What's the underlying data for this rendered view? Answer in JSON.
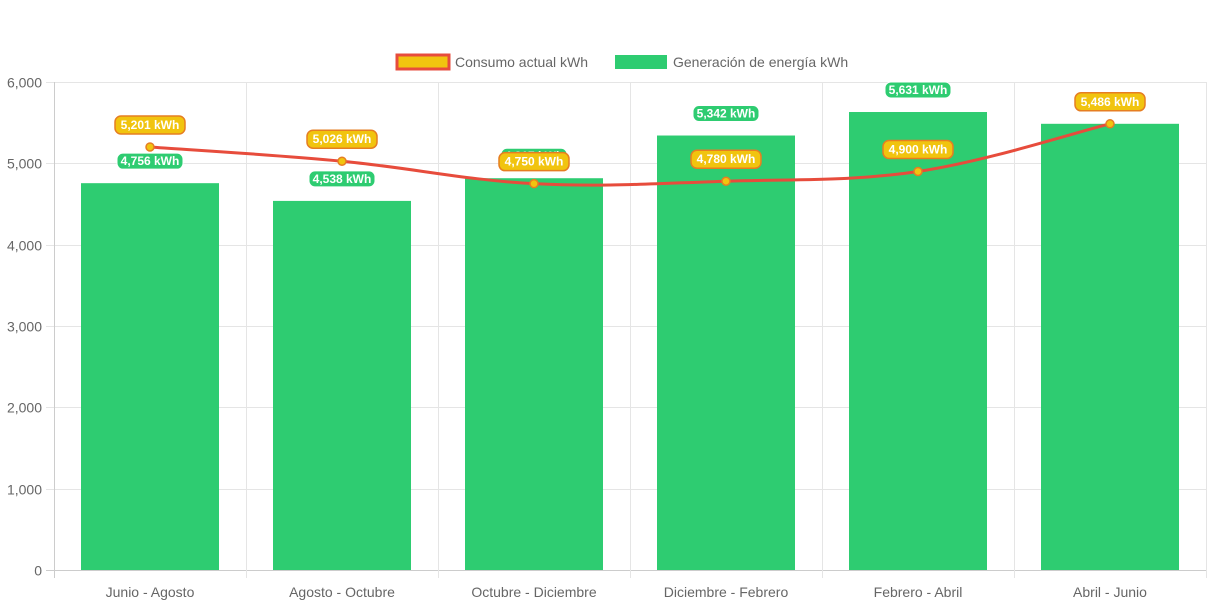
{
  "chart_data": {
    "type": "bar",
    "categories": [
      "Junio - Agosto",
      "Agosto - Octubre",
      "Octubre - Diciembre",
      "Diciembre - Febrero",
      "Febrero - Abril",
      "Abril - Junio"
    ],
    "series": [
      {
        "name": "Consumo actual kWh",
        "type": "line",
        "values": [
          5201,
          5026,
          4750,
          4780,
          4900,
          5486
        ],
        "labels": [
          "5,201 kWh",
          "5,026 kWh",
          "4,750 kWh",
          "4,780 kWh",
          "4,900 kWh",
          "5,486 kWh"
        ],
        "color": "#e74c3c",
        "label_bg": "#f1c40f",
        "label_border": "#e67e22"
      },
      {
        "name": "Generación de energía kWh",
        "type": "bar",
        "values": [
          4756,
          4538,
          4817,
          5342,
          5631,
          5486
        ],
        "labels": [
          "4,756 kWh",
          "4,538 kWh",
          "4,817 kWh",
          "5,342 kWh",
          "5,631 kWh",
          ""
        ],
        "color": "#2ecc71"
      }
    ],
    "ylim": [
      0,
      6000
    ],
    "yticks": [
      0,
      1000,
      2000,
      3000,
      4000,
      5000,
      6000
    ],
    "ytick_labels": [
      "0",
      "1,000",
      "2,000",
      "3,000",
      "4,000",
      "5,000",
      "6,000"
    ],
    "grid": true,
    "legend": "top"
  }
}
